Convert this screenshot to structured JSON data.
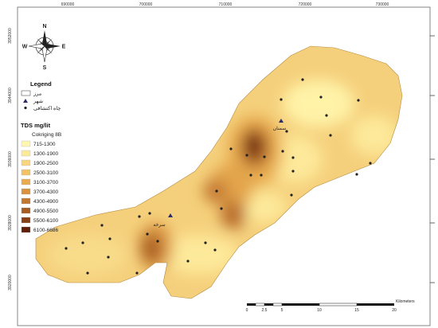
{
  "map": {
    "x_ticks": [
      "690000",
      "700000",
      "710000",
      "720000",
      "730000"
    ],
    "y_ticks": [
      "3952000",
      "3944000",
      "3936000",
      "3928000",
      "3920000"
    ],
    "compass": {
      "n": "N",
      "s": "S",
      "e": "E",
      "w": "W"
    }
  },
  "legend": {
    "title": "Legend",
    "border_label": "مرز",
    "city_label": "شهر",
    "well_label": "چاه اکتشافی",
    "tds_title": "TDS mg/lit",
    "method": "Cokriging 8B",
    "classes": [
      {
        "label": "715-1300",
        "color": "#fff6b0"
      },
      {
        "label": "1300-1900",
        "color": "#fde99a"
      },
      {
        "label": "1900-2500",
        "color": "#f8d57e"
      },
      {
        "label": "2500-3100",
        "color": "#f2c267"
      },
      {
        "label": "3100-3700",
        "color": "#e8ab50"
      },
      {
        "label": "3700-4300",
        "color": "#d99340"
      },
      {
        "label": "4300-4900",
        "color": "#c27830"
      },
      {
        "label": "4900-5500",
        "color": "#a65c23"
      },
      {
        "label": "5500-6100",
        "color": "#874016"
      },
      {
        "label": "6100-6686",
        "color": "#5e1e08"
      }
    ]
  },
  "cities": [
    {
      "name": "سمنان"
    },
    {
      "name": "سرخه"
    }
  ],
  "scale_bar": {
    "ticks": [
      "0",
      "2.5",
      "5",
      "10",
      "15",
      "20"
    ],
    "unit": "Kilometers"
  }
}
